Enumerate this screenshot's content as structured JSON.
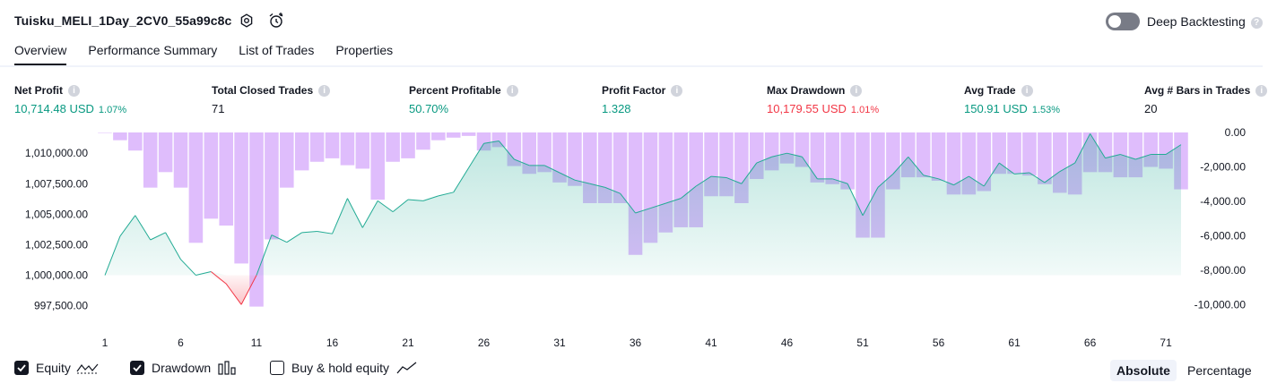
{
  "header": {
    "title": "Tuisku_MELI_1Day_2CV0_55a99c8c",
    "deep_backtesting_label": "Deep Backtesting"
  },
  "tabs": [
    {
      "label": "Overview",
      "active": true
    },
    {
      "label": "Performance Summary",
      "active": false
    },
    {
      "label": "List of Trades",
      "active": false
    },
    {
      "label": "Properties",
      "active": false
    }
  ],
  "metrics": [
    {
      "label": "Net Profit",
      "value": "10,714.48 USD",
      "pct": "1.07%",
      "color": "#089981"
    },
    {
      "label": "Total Closed Trades",
      "value": "71",
      "pct": "",
      "color": "#131722"
    },
    {
      "label": "Percent Profitable",
      "value": "50.70%",
      "pct": "",
      "color": "#089981"
    },
    {
      "label": "Profit Factor",
      "value": "1.328",
      "pct": "",
      "color": "#089981"
    },
    {
      "label": "Max Drawdown",
      "value": "10,179.55 USD",
      "pct": "1.01%",
      "color": "#f23645"
    },
    {
      "label": "Avg Trade",
      "value": "150.91 USD",
      "pct": "1.53%",
      "color": "#089981"
    },
    {
      "label": "Avg # Bars in Trades",
      "value": "20",
      "pct": "",
      "color": "#131722"
    }
  ],
  "chart_data": {
    "type": "line",
    "x_ticks": [
      "1",
      "6",
      "11",
      "16",
      "21",
      "26",
      "31",
      "36",
      "41",
      "46",
      "51",
      "56",
      "61",
      "66",
      "71"
    ],
    "left_axis_ticks": [
      "1,010,000.00",
      "1,007,500.00",
      "1,005,000.00",
      "1,002,500.00",
      "1,000,000.00",
      "997,500.00"
    ],
    "right_axis_ticks": [
      "0.00",
      "-2,000.00",
      "-4,000.00",
      "-6,000.00",
      "-8,000.00",
      "-10,000.00"
    ],
    "left_ylim": [
      996300,
      1011700
    ],
    "right_ylim": [
      -10900,
      0
    ],
    "baseline": 1000000,
    "series": [
      {
        "name": "Equity",
        "axis": "left",
        "color": "#22ab94",
        "x": [
          1,
          2,
          3,
          4,
          5,
          6,
          7,
          8,
          9,
          10,
          11,
          12,
          13,
          14,
          15,
          16,
          17,
          18,
          19,
          20,
          21,
          22,
          23,
          24,
          25,
          26,
          27,
          28,
          29,
          30,
          31,
          32,
          33,
          34,
          35,
          36,
          37,
          38,
          39,
          40,
          41,
          42,
          43,
          44,
          45,
          46,
          47,
          48,
          49,
          50,
          51,
          52,
          53,
          54,
          55,
          56,
          57,
          58,
          59,
          60,
          61,
          62,
          63,
          64,
          65,
          66,
          67,
          68,
          69,
          70,
          71,
          72
        ],
        "values": [
          1000000,
          1003200,
          1004900,
          1002900,
          1003500,
          1001300,
          1000000,
          1000300,
          999300,
          997600,
          1000000,
          1003300,
          1002700,
          1003500,
          1003600,
          1003400,
          1006300,
          1003900,
          1006100,
          1005200,
          1006200,
          1006100,
          1006500,
          1006800,
          1008800,
          1010800,
          1011000,
          1009500,
          1009000,
          1009000,
          1008400,
          1007800,
          1007500,
          1007200,
          1006700,
          1005100,
          1005500,
          1005900,
          1006300,
          1007300,
          1008100,
          1008000,
          1007500,
          1009200,
          1009700,
          1010000,
          1009700,
          1007900,
          1007900,
          1007500,
          1004900,
          1007200,
          1008300,
          1009700,
          1008200,
          1007900,
          1007400,
          1008100,
          1007300,
          1009200,
          1008300,
          1008400,
          1007600,
          1008500,
          1009200,
          1011600,
          1009600,
          1009900,
          1009500,
          1009900,
          1009900,
          1010700
        ]
      },
      {
        "name": "Drawdown",
        "axis": "right",
        "color": "#d9b2fb",
        "x": [
          1,
          2,
          3,
          4,
          5,
          6,
          7,
          8,
          9,
          10,
          11,
          12,
          13,
          14,
          15,
          16,
          17,
          18,
          19,
          20,
          21,
          22,
          23,
          24,
          25,
          26,
          27,
          28,
          29,
          30,
          31,
          32,
          33,
          34,
          35,
          36,
          37,
          38,
          39,
          40,
          41,
          42,
          43,
          44,
          45,
          46,
          47,
          48,
          49,
          50,
          51,
          52,
          53,
          54,
          55,
          56,
          57,
          58,
          59,
          60,
          61,
          62,
          63,
          64,
          65,
          66,
          67,
          68,
          69,
          70,
          71,
          72
        ],
        "values": [
          0,
          -450,
          -1050,
          -3200,
          -2300,
          -3200,
          -6400,
          -5000,
          -5400,
          -7600,
          -10100,
          -6200,
          -3200,
          -2200,
          -1700,
          -1500,
          -1900,
          -2100,
          -3900,
          -1700,
          -1500,
          -1000,
          -450,
          -300,
          -200,
          -1050,
          -850,
          -1950,
          -2400,
          -2300,
          -2900,
          -3100,
          -4100,
          -4100,
          -4100,
          -7100,
          -6400,
          -5800,
          -5500,
          -5500,
          -3700,
          -3700,
          -4100,
          -2700,
          -2200,
          -1800,
          -2000,
          -2900,
          -3000,
          -3300,
          -6100,
          -6100,
          -3300,
          -2600,
          -2600,
          -2800,
          -3600,
          -3600,
          -3400,
          -2400,
          -2400,
          -2500,
          -3000,
          -3500,
          -3600,
          -2300,
          -2300,
          -2600,
          -2600,
          -2000,
          -2100,
          -3300
        ]
      }
    ]
  },
  "bottom": {
    "equity_label": "Equity",
    "drawdown_label": "Drawdown",
    "buy_hold_label": "Buy & hold equity",
    "absolute_label": "Absolute",
    "percentage_label": "Percentage"
  }
}
